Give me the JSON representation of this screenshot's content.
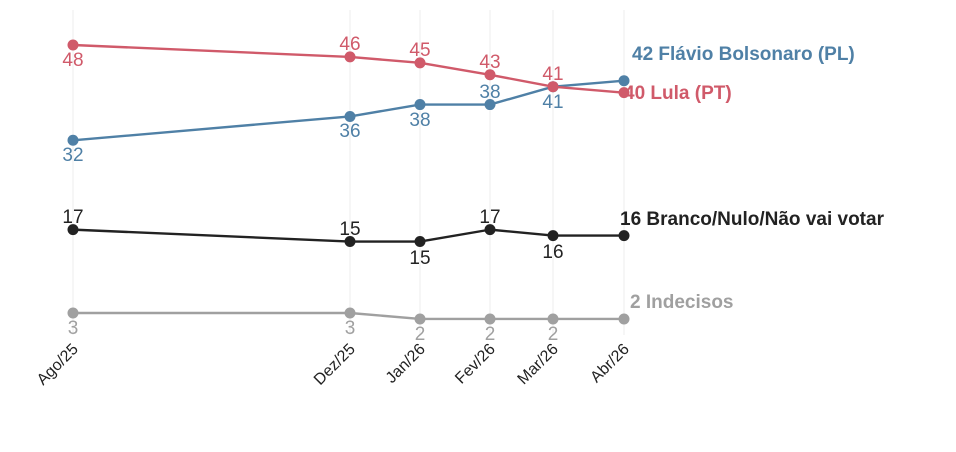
{
  "chart_data": {
    "type": "line",
    "x": [
      "Ago/25",
      "Dez/25",
      "Jan/26",
      "Fev/26",
      "Mar/26",
      "Abr/26"
    ],
    "series": [
      {
        "name": "Lula (PT)",
        "color": "#d05a6a",
        "values": [
          48,
          46,
          45,
          43,
          41,
          40
        ],
        "end_label": "40 Lula (PT)"
      },
      {
        "name": "Flávio Bolsonaro (PL)",
        "color": "#4f80a6",
        "values": [
          32,
          36,
          38,
          38,
          41,
          42
        ],
        "end_label": "42 Flávio Bolsonaro (PL)"
      },
      {
        "name": "Branco/Nulo/Não vai votar",
        "color": "#222222",
        "values": [
          17,
          15,
          15,
          17,
          16,
          16
        ],
        "end_label": "16 Branco/Nulo/Não vai votar"
      },
      {
        "name": "Indecisos",
        "color": "#a0a0a0",
        "values": [
          3,
          3,
          2,
          2,
          2,
          2
        ],
        "end_label": "2 Indecisos"
      }
    ],
    "ylim": [
      0,
      50
    ],
    "grid": "vertical",
    "legend": "none"
  }
}
